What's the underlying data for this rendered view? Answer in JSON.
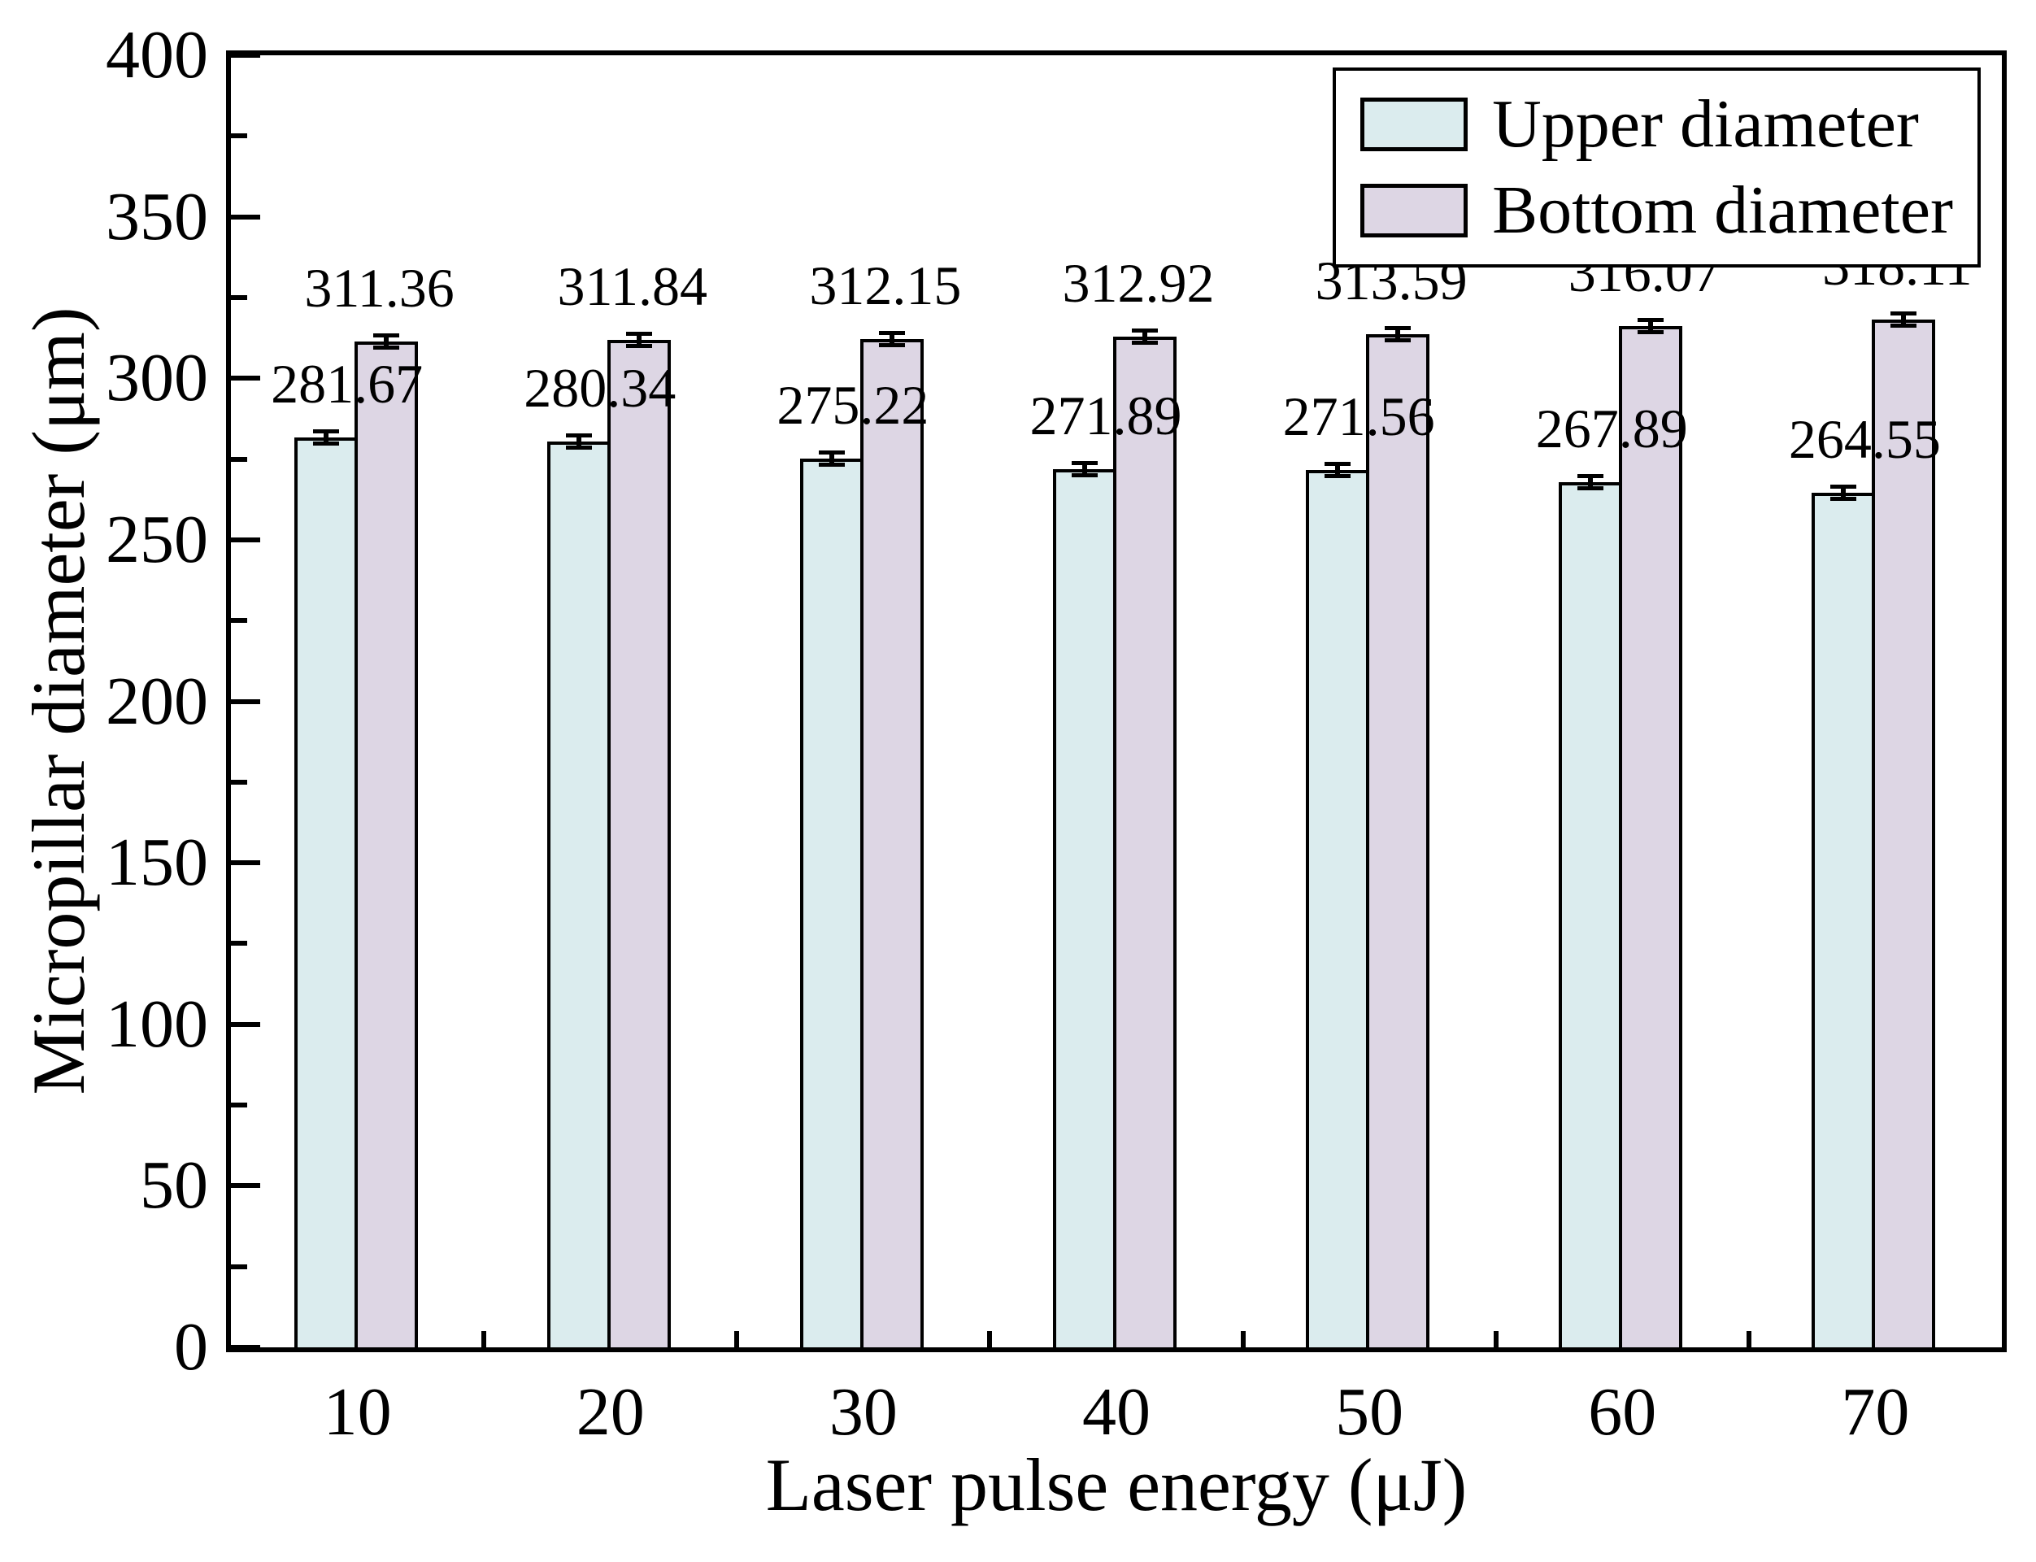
{
  "figure": {
    "background": "#ffffff",
    "text_color": "#000000"
  },
  "chart_data": {
    "type": "bar",
    "title": "",
    "xlabel": "Laser pulse energy (μJ)",
    "ylabel": "Micropillar diameter (μm)",
    "categories": [
      "10",
      "20",
      "30",
      "40",
      "50",
      "60",
      "70"
    ],
    "series": [
      {
        "name": "Upper diameter",
        "color": "#dbecee",
        "values": [
          281.67,
          280.34,
          275.22,
          271.89,
          271.56,
          267.89,
          264.55
        ],
        "value_labels": [
          "281.67",
          "280.34",
          "275.22",
          "271.89",
          "271.56",
          "267.89",
          "264.55"
        ],
        "error_bars": {
          "visible": true,
          "approx_half_um": 2.5
        }
      },
      {
        "name": "Bottom diameter",
        "color": "#ddd6e4",
        "values": [
          311.36,
          311.84,
          312.15,
          312.92,
          313.59,
          316.07,
          318.11
        ],
        "value_labels": [
          "311.36",
          "311.84",
          "312.15",
          "312.92",
          "313.59",
          "316.07",
          "318.11"
        ],
        "error_bars": {
          "visible": true,
          "approx_half_um": 2.5
        }
      }
    ],
    "ylim": [
      0,
      400
    ],
    "yticks": [
      0,
      50,
      100,
      150,
      200,
      250,
      300,
      350,
      400
    ],
    "yminor_step": 25,
    "grid": false,
    "legend_position": "top-right",
    "bar_border_color": "#000000",
    "axis_color": "#000000"
  }
}
